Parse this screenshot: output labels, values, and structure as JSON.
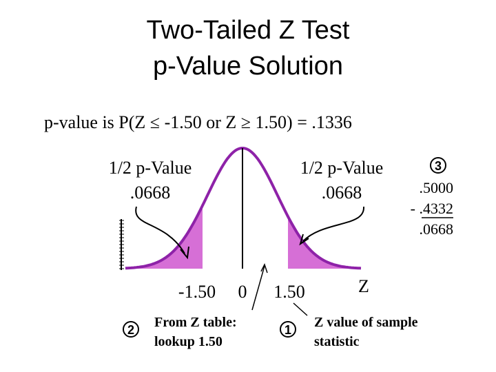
{
  "title": {
    "line1": "Two-Tailed Z Test",
    "line2": "p-Value Solution"
  },
  "statement": "p-value is P(Z ≤ -1.50 or Z ≥ 1.50) = .1336",
  "left_label": {
    "line1": "1/2 p-Value",
    "line2": ".0668"
  },
  "right_label": {
    "line1": "1/2 p-Value",
    "line2": ".0668"
  },
  "calculation": {
    "step": "3",
    "line1": ".5000",
    "line2": "- .4332",
    "line3": ".0668"
  },
  "axis": {
    "left": "-1.50",
    "center": "0",
    "right": "1.50",
    "name": "Z"
  },
  "step2": {
    "number": "2",
    "line1": "From Z table:",
    "line2": "lookup 1.50"
  },
  "step1": {
    "number": "1",
    "line1": "Z value of sample",
    "line2": "statistic"
  }
}
